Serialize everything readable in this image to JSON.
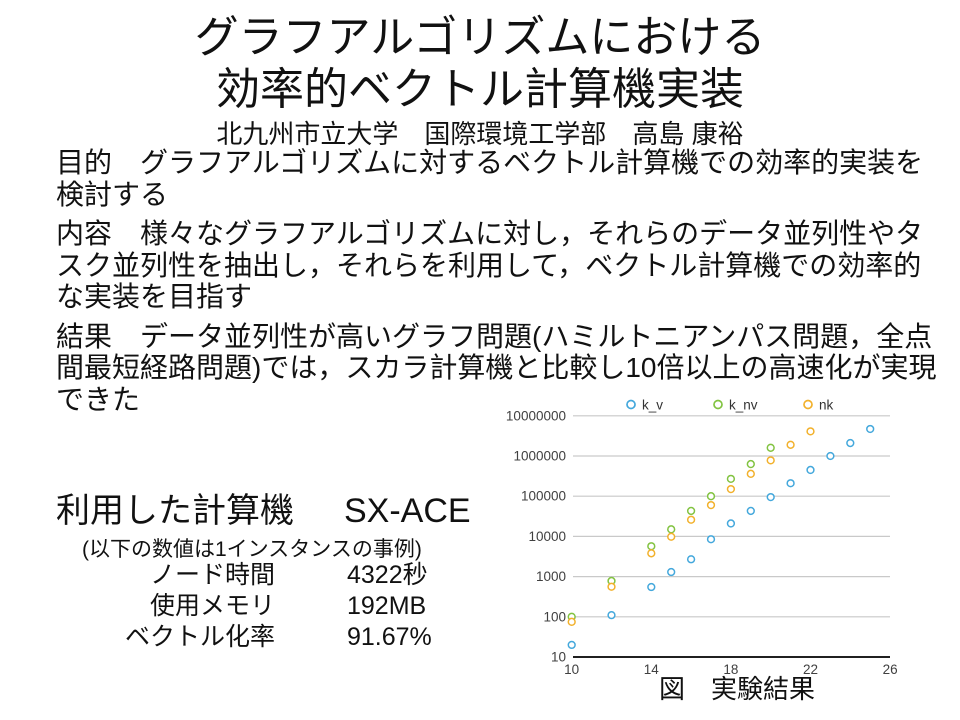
{
  "slide": {
    "title_line1": "グラフアルゴリズムにおける",
    "title_line2": "効率的ベクトル計算機実装",
    "subtitle": "北九州市立大学　国際環境工学部　高島 康裕",
    "paragraphs": [
      {
        "name": "purpose",
        "lines": [
          "目的　グラフアルゴリズムに対するベクトル計算機での効率的実装を",
          "検討する"
        ]
      },
      {
        "name": "content",
        "lines": [
          "内容　様々なグラフアルゴリズムに対し，それらのデータ並列性やタ",
          "スク並列性を抽出し，それらを利用して，ベクトル計算機での効率的",
          "な実装を目指す"
        ]
      },
      {
        "name": "result",
        "lines": [
          "結果　データ並列性が高いグラフ問題(ハミルトニアンパス問題，全点",
          "間最短経路問題)では，スカラ計算機と比較し10倍以上の高速化が実現",
          "できた"
        ]
      }
    ],
    "machine": {
      "label": "利用した計算機",
      "value": "SX-ACE",
      "note": "(以下の数値は1インスタンスの事例)",
      "stats": [
        {
          "label": "ノード時間",
          "value": "4322秒"
        },
        {
          "label": "使用メモリ",
          "value": "192MB"
        },
        {
          "label": "ベクトル化率",
          "value": "91.67%"
        }
      ]
    }
  },
  "chart_data": {
    "type": "scatter",
    "caption": "図　実験結果",
    "y_scale": "log",
    "xlim": [
      10,
      26
    ],
    "ylim": [
      10,
      10000000
    ],
    "x_ticks": [
      10,
      14,
      18,
      22,
      26
    ],
    "y_ticks": [
      10,
      100,
      1000,
      10000,
      100000,
      1000000,
      10000000
    ],
    "grid": true,
    "legend_position": "top",
    "colors": {
      "grid": "#c9c9c9",
      "axis": "#000000",
      "tick_label": "#404040"
    },
    "series": [
      {
        "name": "k_v",
        "color": "#44a8dc",
        "points": [
          [
            10,
            20
          ],
          [
            12,
            110
          ],
          [
            14,
            550
          ],
          [
            15,
            1300
          ],
          [
            16,
            2700
          ],
          [
            17,
            8500
          ],
          [
            18,
            21000
          ],
          [
            19,
            43000
          ],
          [
            20,
            95000
          ],
          [
            21,
            210000
          ],
          [
            22,
            450000
          ],
          [
            23,
            1000000
          ],
          [
            24,
            2100000
          ],
          [
            25,
            4700000
          ]
        ]
      },
      {
        "name": "k_nv",
        "color": "#82c341",
        "points": [
          [
            10,
            100
          ],
          [
            12,
            780
          ],
          [
            14,
            5700
          ],
          [
            15,
            15000
          ],
          [
            16,
            43000
          ],
          [
            17,
            100000
          ],
          [
            18,
            270000
          ],
          [
            19,
            630000
          ],
          [
            20,
            1600000
          ]
        ]
      },
      {
        "name": "nk",
        "color": "#f2b12c",
        "points": [
          [
            10,
            75
          ],
          [
            12,
            560
          ],
          [
            14,
            3800
          ],
          [
            15,
            9800
          ],
          [
            16,
            26000
          ],
          [
            17,
            60000
          ],
          [
            18,
            150000
          ],
          [
            19,
            360000
          ],
          [
            20,
            780000
          ],
          [
            21,
            1900000
          ],
          [
            22,
            4100000
          ]
        ]
      }
    ]
  }
}
